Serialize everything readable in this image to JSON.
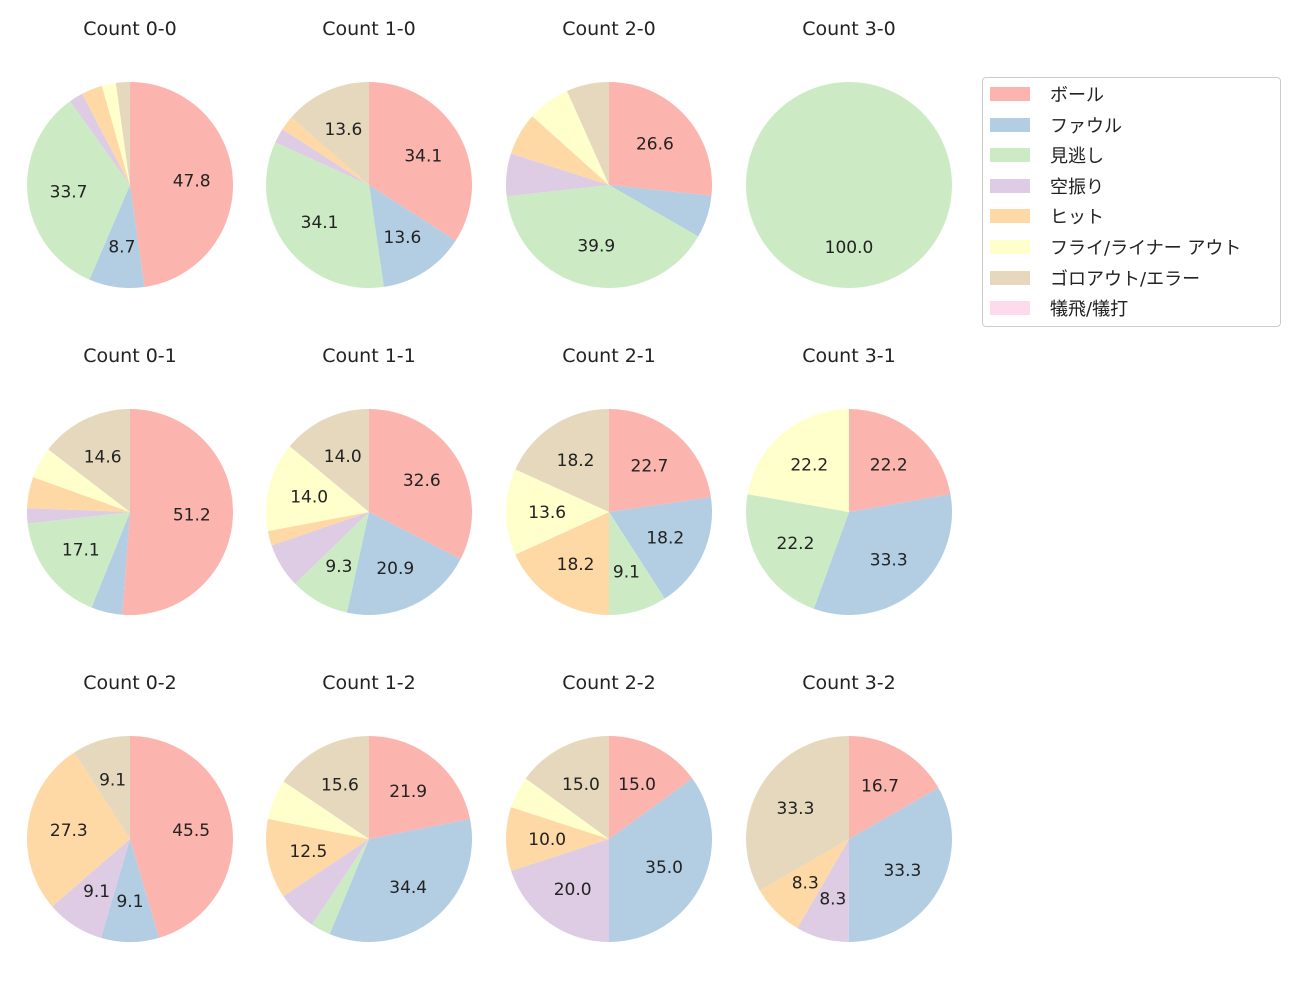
{
  "chart_data": {
    "type": "pie",
    "series_names": [
      "ボール",
      "ファウル",
      "見逃し",
      "空振り",
      "ヒット",
      "フライ/ライナー アウト",
      "ゴロアウト/エラー",
      "犠飛/犠打"
    ],
    "colors": [
      "#fbb4ae",
      "#b3cde3",
      "#ccebc5",
      "#decbe4",
      "#fed9a6",
      "#ffffcc",
      "#e5d8bd",
      "#fddaec"
    ],
    "legend_position": "right",
    "label_threshold_percent": 7,
    "charts": [
      {
        "title": "Count 0-0",
        "values": [
          47.8,
          8.7,
          33.7,
          2.2,
          3.3,
          2.2,
          2.2,
          0
        ]
      },
      {
        "title": "Count 1-0",
        "values": [
          34.1,
          13.6,
          34.1,
          2.3,
          2.3,
          0,
          13.6,
          0
        ]
      },
      {
        "title": "Count 2-0",
        "values": [
          26.7,
          6.7,
          40.0,
          6.7,
          6.7,
          6.7,
          6.7,
          0
        ]
      },
      {
        "title": "Count 3-0",
        "values": [
          0,
          0,
          100.0,
          0,
          0,
          0,
          0,
          0
        ]
      },
      {
        "title": "Count 0-1",
        "values": [
          51.2,
          4.9,
          17.1,
          2.4,
          4.9,
          4.9,
          14.6,
          0
        ]
      },
      {
        "title": "Count 1-1",
        "values": [
          32.6,
          20.9,
          9.3,
          7.0,
          2.3,
          14.0,
          14.0,
          0
        ]
      },
      {
        "title": "Count 2-1",
        "values": [
          22.7,
          18.2,
          9.1,
          0,
          18.2,
          13.6,
          18.2,
          0
        ]
      },
      {
        "title": "Count 3-1",
        "values": [
          22.2,
          33.3,
          22.2,
          0,
          0,
          22.2,
          0,
          0
        ]
      },
      {
        "title": "Count 0-2",
        "values": [
          45.5,
          9.1,
          0,
          9.1,
          27.3,
          0,
          9.1,
          0
        ]
      },
      {
        "title": "Count 1-2",
        "values": [
          21.9,
          34.4,
          3.1,
          6.3,
          12.5,
          6.3,
          15.6,
          0
        ]
      },
      {
        "title": "Count 2-2",
        "values": [
          15.0,
          35.0,
          0,
          20.0,
          10.0,
          5.0,
          15.0,
          0
        ]
      },
      {
        "title": "Count 3-2",
        "values": [
          16.7,
          33.3,
          0,
          8.3,
          8.3,
          0,
          33.3,
          0
        ]
      }
    ]
  }
}
